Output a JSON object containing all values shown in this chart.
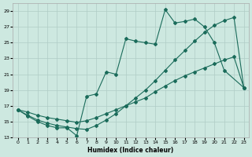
{
  "xlabel": "Humidex (Indice chaleur)",
  "background_color": "#cde8e0",
  "line_color": "#1a6b5a",
  "grid_color": "#b0ccc6",
  "xlim": [
    -0.5,
    23.5
  ],
  "ylim": [
    13,
    30
  ],
  "yticks": [
    13,
    15,
    17,
    19,
    21,
    23,
    25,
    27,
    29
  ],
  "xticks": [
    0,
    1,
    2,
    3,
    4,
    5,
    6,
    7,
    8,
    9,
    10,
    11,
    12,
    13,
    14,
    15,
    16,
    17,
    18,
    19,
    20,
    21,
    22,
    23
  ],
  "series1_x": [
    0,
    1,
    2,
    3,
    4,
    5,
    6,
    7,
    8,
    9,
    10,
    11,
    12,
    13,
    14,
    15,
    16,
    17,
    18,
    19,
    20,
    21,
    23
  ],
  "series1_y": [
    16.5,
    15.7,
    15.0,
    14.5,
    14.2,
    14.2,
    13.2,
    18.2,
    18.5,
    21.3,
    21.0,
    25.5,
    25.2,
    25.0,
    24.8,
    29.2,
    27.5,
    27.7,
    28.0,
    27.0,
    25.0,
    21.5,
    19.3
  ],
  "series2_x": [
    0,
    1,
    2,
    3,
    4,
    5,
    6,
    7,
    8,
    9,
    10,
    11,
    12,
    13,
    14,
    15,
    16,
    17,
    18,
    19,
    20,
    21,
    22,
    23
  ],
  "series2_y": [
    16.5,
    16.2,
    15.8,
    15.5,
    15.3,
    15.1,
    14.9,
    15.1,
    15.5,
    16.0,
    16.5,
    17.0,
    17.5,
    18.0,
    18.8,
    19.5,
    20.2,
    20.8,
    21.3,
    21.8,
    22.3,
    22.8,
    23.2,
    19.3
  ],
  "series3_x": [
    0,
    1,
    2,
    3,
    4,
    5,
    6,
    7,
    8,
    9,
    10,
    11,
    12,
    13,
    14,
    15,
    16,
    17,
    18,
    19,
    20,
    21,
    22,
    23
  ],
  "series3_y": [
    16.5,
    15.8,
    15.2,
    14.8,
    14.5,
    14.3,
    14.1,
    14.0,
    14.5,
    15.2,
    16.0,
    17.0,
    18.0,
    19.0,
    20.2,
    21.5,
    22.8,
    24.0,
    25.2,
    26.3,
    27.2,
    27.8,
    28.2,
    19.3
  ]
}
